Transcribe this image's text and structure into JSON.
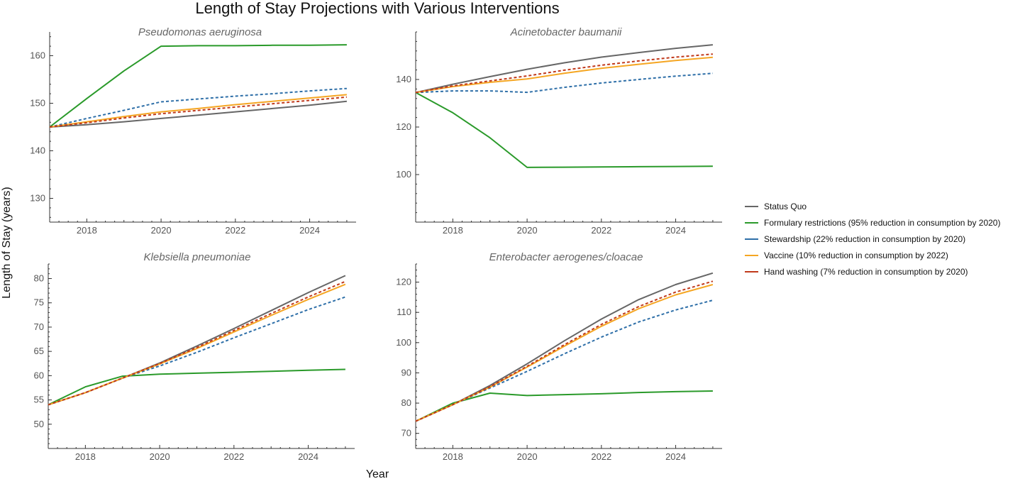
{
  "chart_data": {
    "type": "line",
    "title": "Length of Stay Projections with Various Interventions",
    "xlabel": "Year",
    "ylabel": "Length of Stay (years)",
    "x": [
      2017,
      2018,
      2019,
      2020,
      2021,
      2022,
      2023,
      2024,
      2025
    ],
    "xticks": [
      2018,
      2020,
      2022,
      2024
    ],
    "legend": {
      "placement": "right",
      "entries": [
        {
          "key": "status_quo",
          "label": "Status Quo",
          "color": "#666666"
        },
        {
          "key": "formulary",
          "label": "Formulary restrictions (95% reduction in consumption by 2020)",
          "color": "#2a9a2a"
        },
        {
          "key": "stewardship",
          "label": "Stewardship (22% reduction in consumption by 2020)",
          "color": "#2e6fa8"
        },
        {
          "key": "vaccine",
          "label": "Vaccine (10% reduction in consumption by 2022)",
          "color": "#f5a623"
        },
        {
          "key": "hand_washing",
          "label": "Hand washing (7% reduction in consumption by 2020)",
          "color": "#c0391b"
        }
      ]
    },
    "panels": [
      {
        "title": "Pseudomonas aeruginosa",
        "ylim": [
          125,
          165
        ],
        "yticks": [
          130,
          140,
          150,
          160
        ],
        "series": [
          {
            "key": "status_quo",
            "values": [
              145.0,
              145.5,
              146.1,
              146.8,
              147.5,
              148.2,
              148.9,
              149.6,
              150.4
            ],
            "dashed": false
          },
          {
            "key": "formulary",
            "values": [
              145.0,
              151.0,
              156.8,
              162.0,
              162.1,
              162.1,
              162.2,
              162.2,
              162.3
            ],
            "dashed": false
          },
          {
            "key": "stewardship",
            "values": [
              145.0,
              146.8,
              148.5,
              150.3,
              150.9,
              151.5,
              152.0,
              152.6,
              153.1
            ],
            "dashed": true
          },
          {
            "key": "vaccine",
            "values": [
              145.0,
              146.1,
              147.2,
              148.2,
              148.9,
              149.7,
              150.4,
              151.1,
              151.8
            ],
            "dashed": false
          },
          {
            "key": "hand_washing",
            "values": [
              145.0,
              145.9,
              146.9,
              147.8,
              148.5,
              149.2,
              149.9,
              150.6,
              151.3
            ],
            "dashed": true
          }
        ]
      },
      {
        "title": "Acinetobacter baumanii",
        "ylim": [
          80,
          160
        ],
        "yticks": [
          100,
          120,
          140
        ],
        "series": [
          {
            "key": "status_quo",
            "values": [
              134.5,
              138.0,
              141.2,
              144.3,
              147.0,
              149.4,
              151.3,
              153.1,
              154.6
            ],
            "dashed": false
          },
          {
            "key": "formulary",
            "values": [
              134.5,
              126.0,
              115.5,
              103.0,
              103.1,
              103.2,
              103.3,
              103.4,
              103.5
            ],
            "dashed": false
          },
          {
            "key": "stewardship",
            "values": [
              134.5,
              135.2,
              135.2,
              134.6,
              136.7,
              138.5,
              140.0,
              141.4,
              142.6
            ],
            "dashed": true
          },
          {
            "key": "vaccine",
            "values": [
              134.5,
              137.0,
              138.8,
              140.2,
              142.6,
              144.7,
              146.4,
              148.0,
              149.3
            ],
            "dashed": false
          },
          {
            "key": "hand_washing",
            "values": [
              134.5,
              137.3,
              139.4,
              141.5,
              143.9,
              146.0,
              147.8,
              149.4,
              150.7
            ],
            "dashed": true
          }
        ]
      },
      {
        "title": "Klebsiella pneumoniae",
        "ylim": [
          45,
          83
        ],
        "yticks": [
          50,
          55,
          60,
          65,
          70,
          75,
          80
        ],
        "series": [
          {
            "key": "status_quo",
            "values": [
              54.0,
              56.5,
              59.5,
              62.6,
              66.1,
              69.7,
              73.4,
              77.1,
              80.6
            ],
            "dashed": false
          },
          {
            "key": "formulary",
            "values": [
              54.0,
              57.7,
              59.9,
              60.3,
              60.5,
              60.7,
              60.9,
              61.1,
              61.3
            ],
            "dashed": false
          },
          {
            "key": "stewardship",
            "values": [
              54.0,
              56.5,
              59.5,
              62.0,
              64.8,
              67.8,
              70.7,
              73.6,
              76.2
            ],
            "dashed": true
          },
          {
            "key": "vaccine",
            "values": [
              54.0,
              56.5,
              59.5,
              62.4,
              65.6,
              69.0,
              72.4,
              75.7,
              78.8
            ],
            "dashed": false
          },
          {
            "key": "hand_washing",
            "values": [
              54.0,
              56.5,
              59.5,
              62.5,
              65.8,
              69.3,
              72.8,
              76.2,
              79.4
            ],
            "dashed": true
          }
        ]
      },
      {
        "title": "Enterobacter aerogenes/cloacae",
        "ylim": [
          65,
          126
        ],
        "yticks": [
          70,
          80,
          90,
          100,
          110,
          120
        ],
        "series": [
          {
            "key": "status_quo",
            "values": [
              74.0,
              79.5,
              85.8,
              93.0,
              100.6,
              107.8,
              114.2,
              119.2,
              123.0
            ],
            "dashed": false
          },
          {
            "key": "formulary",
            "values": [
              74.0,
              80.0,
              83.3,
              82.5,
              82.8,
              83.1,
              83.5,
              83.8,
              84.0
            ],
            "dashed": false
          },
          {
            "key": "stewardship",
            "values": [
              74.0,
              79.5,
              85.0,
              90.5,
              96.3,
              101.8,
              106.8,
              110.8,
              114.0
            ],
            "dashed": true
          },
          {
            "key": "vaccine",
            "values": [
              74.0,
              79.5,
              85.3,
              91.9,
              98.8,
              105.4,
              111.2,
              115.8,
              119.2
            ],
            "dashed": false
          },
          {
            "key": "hand_washing",
            "values": [
              74.0,
              79.5,
              85.4,
              92.2,
              99.3,
              106.0,
              111.9,
              116.7,
              120.3
            ],
            "dashed": true
          }
        ]
      }
    ]
  }
}
